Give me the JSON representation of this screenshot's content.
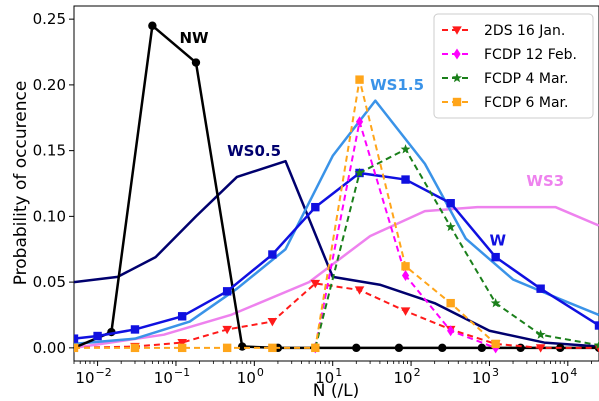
{
  "chart_data": {
    "type": "line",
    "xlabel": "N (/L)",
    "ylabel": "Probability of occurence",
    "xscale": "log",
    "xlim": [
      0.005,
      25000
    ],
    "ylim": [
      -0.01,
      0.26
    ],
    "x_ticks": [
      {
        "value": 0.01,
        "label": "10",
        "exp": "−2"
      },
      {
        "value": 0.1,
        "label": "10",
        "exp": "−1"
      },
      {
        "value": 1,
        "label": "10",
        "exp": "0"
      },
      {
        "value": 10,
        "label": "10",
        "exp": "1"
      },
      {
        "value": 100,
        "label": "10",
        "exp": "2"
      },
      {
        "value": 1000,
        "label": "10",
        "exp": "3"
      },
      {
        "value": 10000,
        "label": "10",
        "exp": "4"
      }
    ],
    "y_ticks": [
      {
        "value": 0.0,
        "label": "0.00"
      },
      {
        "value": 0.05,
        "label": "0.05"
      },
      {
        "value": 0.1,
        "label": "0.10"
      },
      {
        "value": 0.15,
        "label": "0.15"
      },
      {
        "value": 0.2,
        "label": "0.20"
      },
      {
        "value": 0.25,
        "label": "0.25"
      }
    ],
    "legend_position": "top-right",
    "series": [
      {
        "key": "ws3",
        "color": "#ee82ee",
        "dash": "",
        "marker": "",
        "label": "WS3",
        "label_x": 9000,
        "label_y": 0.123,
        "anchor": "end",
        "x": [
          0.005,
          0.07,
          0.5,
          5,
          30,
          150,
          700,
          7000,
          25000
        ],
        "y": [
          0.0,
          0.01,
          0.025,
          0.05,
          0.085,
          0.104,
          0.107,
          0.107,
          0.093
        ]
      },
      {
        "key": "ws05",
        "color": "#00006e",
        "dash": "",
        "marker": "",
        "label": "WS0.5",
        "label_x": 0.45,
        "label_y": 0.146,
        "anchor": "start",
        "x": [
          0.005,
          0.018,
          0.055,
          0.18,
          0.6,
          2.5,
          10,
          40,
          200,
          1000,
          5000,
          25000
        ],
        "y": [
          0.05,
          0.054,
          0.069,
          0.1,
          0.13,
          0.142,
          0.054,
          0.048,
          0.034,
          0.013,
          0.004,
          0.001
        ]
      },
      {
        "key": "ws15",
        "color": "#3a93e8",
        "dash": "",
        "marker": "",
        "label": "WS1.5",
        "label_x": 30,
        "label_y": 0.196,
        "anchor": "start",
        "x": [
          0.005,
          0.03,
          0.15,
          0.6,
          2.5,
          10,
          35,
          150,
          500,
          2000,
          8000,
          25000
        ],
        "y": [
          0.003,
          0.007,
          0.02,
          0.045,
          0.075,
          0.146,
          0.188,
          0.14,
          0.083,
          0.052,
          0.037,
          0.025
        ]
      },
      {
        "key": "nw",
        "color": "#000000",
        "dash": "",
        "marker": "circle",
        "label": "NW",
        "label_x": 0.17,
        "label_y": 0.232,
        "anchor": "middle",
        "x": [
          0.005,
          0.015,
          0.05,
          0.18,
          0.7,
          2,
          6,
          20,
          70,
          250,
          800,
          2500,
          8000,
          25000
        ],
        "y": [
          0.0,
          0.012,
          0.245,
          0.217,
          0.001,
          0.0,
          0.0,
          0.0,
          0.0,
          0.0,
          0.0,
          0.0,
          0.0,
          0.0
        ]
      },
      {
        "key": "w",
        "color": "#1010e0",
        "dash": "",
        "marker": "square",
        "label": "W",
        "label_x": 1000,
        "label_y": 0.078,
        "anchor": "start",
        "x": [
          0.005,
          0.01,
          0.03,
          0.12,
          0.45,
          1.7,
          6,
          22,
          85,
          320,
          1200,
          4500,
          25000
        ],
        "y": [
          0.007,
          0.009,
          0.014,
          0.024,
          0.043,
          0.071,
          0.107,
          0.133,
          0.128,
          0.11,
          0.069,
          0.045,
          0.017
        ]
      },
      {
        "key": "ds2",
        "color": "#ff1a1a",
        "dash": "6,4",
        "marker": "triangle-down",
        "legend": "2DS 16 Jan.",
        "x": [
          0.005,
          0.03,
          0.12,
          0.45,
          1.7,
          6,
          22,
          85,
          320,
          1200,
          4500,
          25000
        ],
        "y": [
          0.0,
          0.001,
          0.004,
          0.014,
          0.02,
          0.049,
          0.044,
          0.028,
          0.014,
          0.003,
          0.0,
          0.0
        ]
      },
      {
        "key": "fcdp12",
        "color": "#ff00ff",
        "dash": "6,4",
        "marker": "diamond",
        "legend": "FCDP 12 Feb.",
        "x": [
          6,
          22,
          85,
          320,
          1200
        ],
        "y": [
          0.0,
          0.172,
          0.055,
          0.013,
          0.0
        ]
      },
      {
        "key": "fcdp4",
        "color": "#1a7f1a",
        "dash": "6,4",
        "marker": "star",
        "legend": "FCDP 4 Mar.",
        "x": [
          6,
          22,
          85,
          320,
          1200,
          4500,
          25000
        ],
        "y": [
          0.0,
          0.133,
          0.151,
          0.092,
          0.034,
          0.01,
          0.002
        ]
      },
      {
        "key": "fcdp6",
        "color": "#ffa51a",
        "dash": "6,4",
        "marker": "square",
        "legend": "FCDP 6 Mar.",
        "x": [
          0.005,
          0.03,
          0.12,
          0.45,
          1.7,
          6,
          22,
          85,
          320,
          1200
        ],
        "y": [
          0.0,
          0.0,
          0.0,
          0.0,
          0.0,
          0.0,
          0.204,
          0.062,
          0.034,
          0.003
        ]
      }
    ]
  }
}
